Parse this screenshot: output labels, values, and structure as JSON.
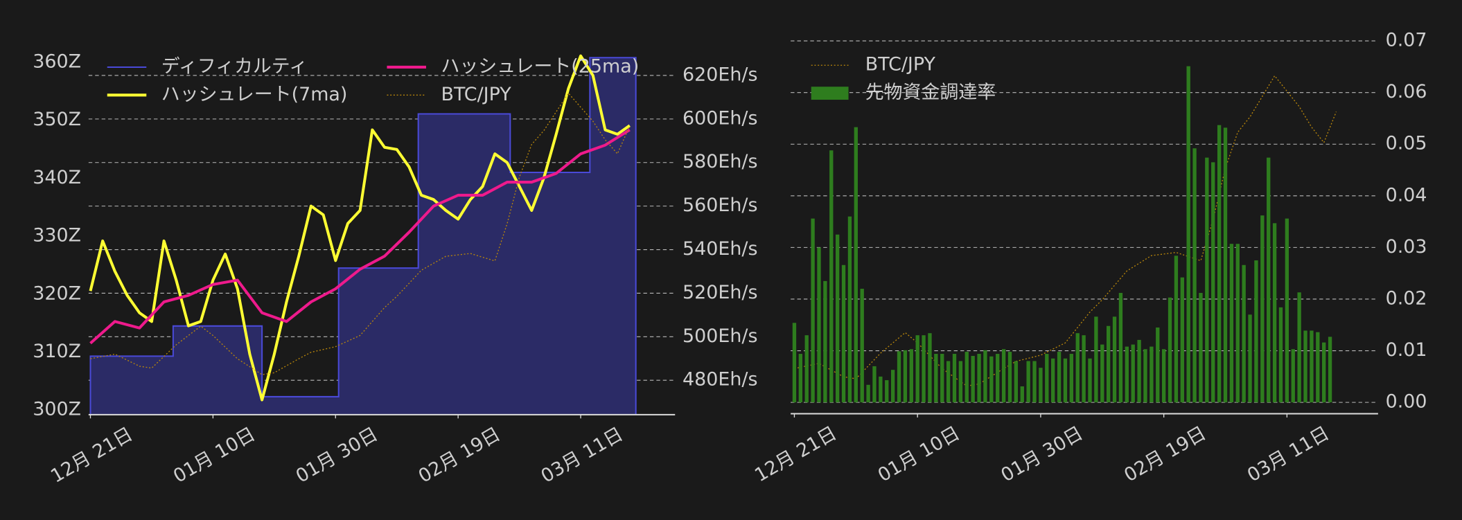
{
  "chart_data": [
    {
      "type": "line",
      "xlim": [
        -0.3,
        95.4
      ],
      "xticks": [
        {
          "value": 0,
          "label": "12月 21日"
        },
        {
          "value": 20,
          "label": "01月 10日"
        },
        {
          "value": 40,
          "label": "01月 30日"
        },
        {
          "value": 60,
          "label": "02月 19日"
        },
        {
          "value": 80,
          "label": "03月 11日"
        }
      ],
      "ylim": [
        299.2,
        361.9
      ],
      "yticks": [
        {
          "value": 300,
          "label": "300Z"
        },
        {
          "value": 310,
          "label": "310Z"
        },
        {
          "value": 320,
          "label": "320Z"
        },
        {
          "value": 330,
          "label": "330Z"
        },
        {
          "value": 340,
          "label": "340Z"
        },
        {
          "value": 350,
          "label": "350Z"
        },
        {
          "value": 360,
          "label": "360Z"
        }
      ],
      "y2lim": [
        464.2,
        631.1
      ],
      "y2ticks": [
        {
          "value": 480,
          "label": "480Eh/s"
        },
        {
          "value": 500,
          "label": "500Eh/s"
        },
        {
          "value": 520,
          "label": "520Eh/s"
        },
        {
          "value": 540,
          "label": "540Eh/s"
        },
        {
          "value": 560,
          "label": "560Eh/s"
        },
        {
          "value": 580,
          "label": "580Eh/s"
        },
        {
          "value": 600,
          "label": "600Eh/s"
        },
        {
          "value": 620,
          "label": "620Eh/s"
        }
      ],
      "y3lim": [
        5225000,
        11075000
      ],
      "grid": "y2",
      "legend": "upper left",
      "series": [
        {
          "name": "ディフィカルティ",
          "type": "step",
          "color": "#4a4ad8",
          "fill": "#2b2b66",
          "x": [
            0,
            13.5,
            28,
            40.5,
            53.5,
            68.5,
            81.5,
            89
          ],
          "values": [
            309.3,
            314.5,
            302.3,
            324.5,
            351.1,
            341,
            360.8,
            360.8
          ]
        },
        {
          "name": "ハッシュレート(7ma)",
          "axis": "y2",
          "color": "#ffff33",
          "x": [
            0,
            2,
            4,
            6,
            8,
            10,
            12,
            14,
            16,
            18,
            20,
            22,
            24,
            26,
            28,
            30,
            32,
            34,
            36,
            38,
            40,
            42,
            44,
            46,
            48,
            50,
            52,
            54,
            56,
            58,
            60,
            62,
            64,
            66,
            68,
            70,
            72,
            74,
            76,
            78,
            80,
            82,
            84,
            86,
            88
          ],
          "values": [
            521,
            544,
            530,
            519,
            511,
            507,
            544,
            526,
            505,
            507,
            526,
            538,
            522,
            492,
            471,
            492,
            516,
            537,
            560,
            556,
            535,
            552,
            558,
            595,
            587,
            586,
            578,
            565,
            563,
            558,
            554,
            563,
            569,
            584,
            580,
            569,
            558,
            573,
            593,
            614,
            629,
            620,
            595,
            593,
            597
          ]
        },
        {
          "name": "ハッシュレート(25ma)",
          "axis": "y2",
          "color": "#ee1a8c",
          "x": [
            0,
            4,
            8,
            12,
            16,
            20,
            24,
            28,
            32,
            36,
            40,
            44,
            48,
            52,
            56,
            60,
            64,
            68,
            72,
            76,
            80,
            84,
            88
          ],
          "values": [
            497,
            507,
            504,
            516,
            519,
            524,
            526,
            511,
            507,
            516,
            522,
            531,
            537,
            548,
            560,
            565,
            565,
            571,
            571,
            575,
            584,
            588,
            595
          ]
        },
        {
          "name": "BTC/JPY",
          "axis": "y3",
          "color": "#b8860b",
          "linestyle": "dotted",
          "x": [
            0,
            4,
            8,
            10,
            14,
            18,
            20,
            24,
            28,
            30,
            34,
            36,
            40,
            44,
            48,
            50,
            54,
            58,
            62,
            66,
            68,
            70,
            72,
            74,
            76,
            78,
            80,
            82,
            84,
            86,
            88
          ],
          "values": [
            6125000,
            6200000,
            6005000,
            5975000,
            6350000,
            6650000,
            6500000,
            6125000,
            5870000,
            5900000,
            6125000,
            6230000,
            6320000,
            6500000,
            6950000,
            7130000,
            7550000,
            7775000,
            7820000,
            7700000,
            8300000,
            9050000,
            9575000,
            9800000,
            10100000,
            10400000,
            10175000,
            9950000,
            9650000,
            9425000,
            9875000
          ]
        }
      ]
    },
    {
      "type": "bar",
      "xlim": [
        -0.6,
        94.8
      ],
      "xticks": [
        {
          "value": 0,
          "label": "12月 21日"
        },
        {
          "value": 20,
          "label": "01月 10日"
        },
        {
          "value": 40,
          "label": "01月 30日"
        },
        {
          "value": 60,
          "label": "02月 19日"
        },
        {
          "value": 80,
          "label": "03月 11日"
        }
      ],
      "ylim": [
        -0.0022,
        0.0716
      ],
      "yticks": [
        {
          "value": 0,
          "label": "0.00"
        },
        {
          "value": 0.01,
          "label": "0.01"
        },
        {
          "value": 0.02,
          "label": "0.02"
        },
        {
          "value": 0.03,
          "label": "0.03"
        },
        {
          "value": 0.04,
          "label": "0.04"
        },
        {
          "value": 0.05,
          "label": "0.05"
        },
        {
          "value": 0.06,
          "label": "0.06"
        },
        {
          "value": 0.07,
          "label": "0.07"
        }
      ],
      "yaxis_side": "right",
      "y3lim": [
        5465000,
        11030000
      ],
      "grid": "y",
      "legend": "upper left",
      "series": [
        {
          "name": "BTC/JPY",
          "type": "line",
          "axis": "y3",
          "color": "#b8860b",
          "linestyle": "dotted",
          "x": [
            0,
            4,
            8,
            10,
            14,
            18,
            20,
            24,
            28,
            30,
            34,
            36,
            40,
            44,
            48,
            50,
            54,
            58,
            62,
            66,
            68,
            70,
            72,
            74,
            76,
            78,
            80,
            82,
            84,
            86,
            88
          ],
          "values": [
            6125000,
            6200000,
            6005000,
            5975000,
            6350000,
            6650000,
            6500000,
            6125000,
            5870000,
            5900000,
            6125000,
            6230000,
            6320000,
            6500000,
            6950000,
            7130000,
            7550000,
            7775000,
            7820000,
            7700000,
            8300000,
            9050000,
            9575000,
            9800000,
            10100000,
            10400000,
            10175000,
            9950000,
            9650000,
            9425000,
            9875000
          ]
        },
        {
          "name": "先物資金調達率",
          "type": "bar",
          "color": "#2e7d1e",
          "x": [
            0,
            1,
            2,
            3,
            4,
            5,
            6,
            7,
            8,
            9,
            10,
            11,
            12,
            13,
            14,
            15,
            16,
            17,
            18,
            19,
            20,
            21,
            22,
            23,
            24,
            25,
            26,
            27,
            28,
            29,
            30,
            31,
            32,
            33,
            34,
            35,
            36,
            37,
            38,
            39,
            40,
            41,
            42,
            43,
            44,
            45,
            46,
            47,
            48,
            49,
            50,
            51,
            52,
            53,
            54,
            55,
            56,
            57,
            58,
            59,
            60,
            61,
            62,
            63,
            64,
            65,
            66,
            67,
            68,
            69,
            70,
            71,
            72,
            73,
            74,
            75,
            76,
            77,
            78,
            79,
            80,
            81,
            82,
            83,
            84,
            85,
            86,
            87
          ],
          "values": [
            0.0154,
            0.0094,
            0.013,
            0.0356,
            0.03,
            0.0235,
            0.0488,
            0.0325,
            0.0266,
            0.036,
            0.0533,
            0.022,
            0.0034,
            0.007,
            0.005,
            0.0043,
            0.0063,
            0.0099,
            0.0101,
            0.0103,
            0.013,
            0.013,
            0.0134,
            0.0094,
            0.0094,
            0.008,
            0.0094,
            0.008,
            0.0098,
            0.009,
            0.0094,
            0.0101,
            0.0089,
            0.0094,
            0.0103,
            0.0098,
            0.008,
            0.0031,
            0.008,
            0.008,
            0.0067,
            0.0094,
            0.0085,
            0.0098,
            0.0085,
            0.0094,
            0.0134,
            0.013,
            0.0085,
            0.0166,
            0.0112,
            0.0148,
            0.0166,
            0.0212,
            0.0108,
            0.0112,
            0.0121,
            0.0103,
            0.0108,
            0.0145,
            0.0103,
            0.0203,
            0.0284,
            0.0242,
            0.0651,
            0.0492,
            0.0212,
            0.0474,
            0.0465,
            0.0537,
            0.0532,
            0.0307,
            0.0307,
            0.0266,
            0.017,
            0.0275,
            0.0362,
            0.0474,
            0.0347,
            0.0184,
            0.0356,
            0.0103,
            0.0213,
            0.0139,
            0.0139,
            0.0136,
            0.0116,
            0.0127
          ]
        }
      ]
    }
  ]
}
